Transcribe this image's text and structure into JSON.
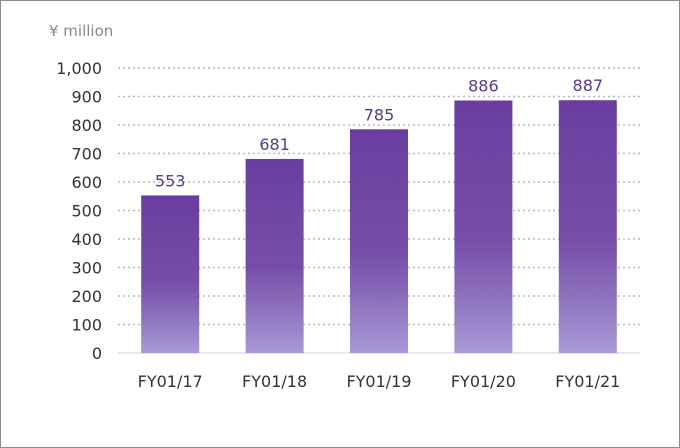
{
  "chart_data": {
    "type": "bar",
    "unit_label": "¥ million",
    "categories": [
      "FY01/17",
      "FY01/18",
      "FY01/19",
      "FY01/20",
      "FY01/21"
    ],
    "values": [
      553,
      681,
      785,
      886,
      887
    ],
    "data_labels": [
      "553",
      "681",
      "785",
      "886",
      "887"
    ],
    "ylim": [
      0,
      1000
    ],
    "yticks": [
      0,
      100,
      200,
      300,
      400,
      500,
      600,
      700,
      800,
      900,
      1000
    ],
    "ytick_labels": [
      "0",
      "100",
      "200",
      "300",
      "400",
      "500",
      "600",
      "700",
      "800",
      "900",
      "1,000"
    ],
    "grid": true,
    "bar_color_top": "#6a3ea1",
    "bar_color_bottom": "#a89ad6",
    "label_color": "#5a3a8a"
  }
}
